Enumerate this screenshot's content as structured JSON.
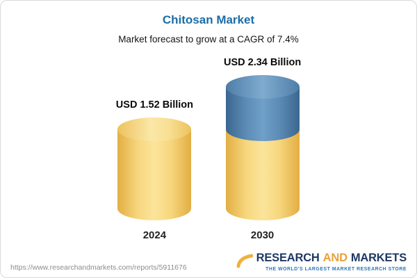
{
  "chart_data": {
    "type": "bar",
    "title": "Chitosan Market",
    "subtitle": "Market forecast to grow at a CAGR of 7.4%",
    "cagr_percent": 7.4,
    "unit": "USD Billion",
    "categories": [
      "2024",
      "2030"
    ],
    "values": [
      1.52,
      2.34
    ],
    "value_labels": [
      "USD 1.52 Billion",
      "USD 2.34 Billion"
    ],
    "bar_colors": [
      "#F7D77E",
      "#5D8CB6"
    ],
    "notes": "2030 bar is stacked: yellow base equal to 2024 value plus blue growth segment on top"
  },
  "footer": {
    "url": "https://www.researchandmarkets.com/reports/5911676",
    "brand": {
      "word1": "RESEARCH",
      "word2": "AND",
      "word3": "MARKETS"
    },
    "tagline": "THE WORLD'S LARGEST MARKET RESEARCH STORE"
  },
  "colors": {
    "title_blue": "#1B6DA8",
    "bar_yellow": "#F7D77E",
    "bar_blue": "#5D8CB6",
    "brand_navy": "#1F3864",
    "brand_gold": "#E9A13B",
    "tagline_blue": "#2E75B6",
    "url_gray": "#8C8C8C"
  }
}
